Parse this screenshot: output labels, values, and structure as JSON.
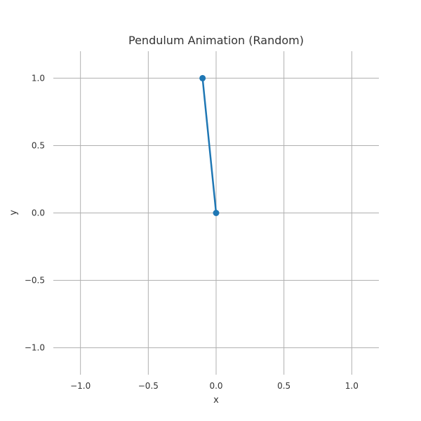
{
  "chart_data": {
    "type": "line",
    "title": "Pendulum Animation (Random)",
    "xlabel": "x",
    "ylabel": "y",
    "xlim": [
      -1.2,
      1.2
    ],
    "ylim": [
      -1.2,
      1.2
    ],
    "xticks": [
      -1.0,
      -0.5,
      0.0,
      0.5,
      1.0
    ],
    "yticks": [
      -1.0,
      -0.5,
      0.0,
      0.5,
      1.0
    ],
    "xtick_labels": [
      "−1.0",
      "−0.5",
      "0.0",
      "0.5",
      "1.0"
    ],
    "ytick_labels": [
      "−1.0",
      "−0.5",
      "0.0",
      "0.5",
      "1.0"
    ],
    "grid": true,
    "series": [
      {
        "x": [
          0.0,
          -0.1
        ],
        "y": [
          0.0,
          1.0
        ],
        "color": "#1f77b4",
        "marker": "circle"
      }
    ]
  },
  "colors": {
    "grid": "#b0b0b0",
    "text": "#333333",
    "line": "#1f77b4"
  }
}
